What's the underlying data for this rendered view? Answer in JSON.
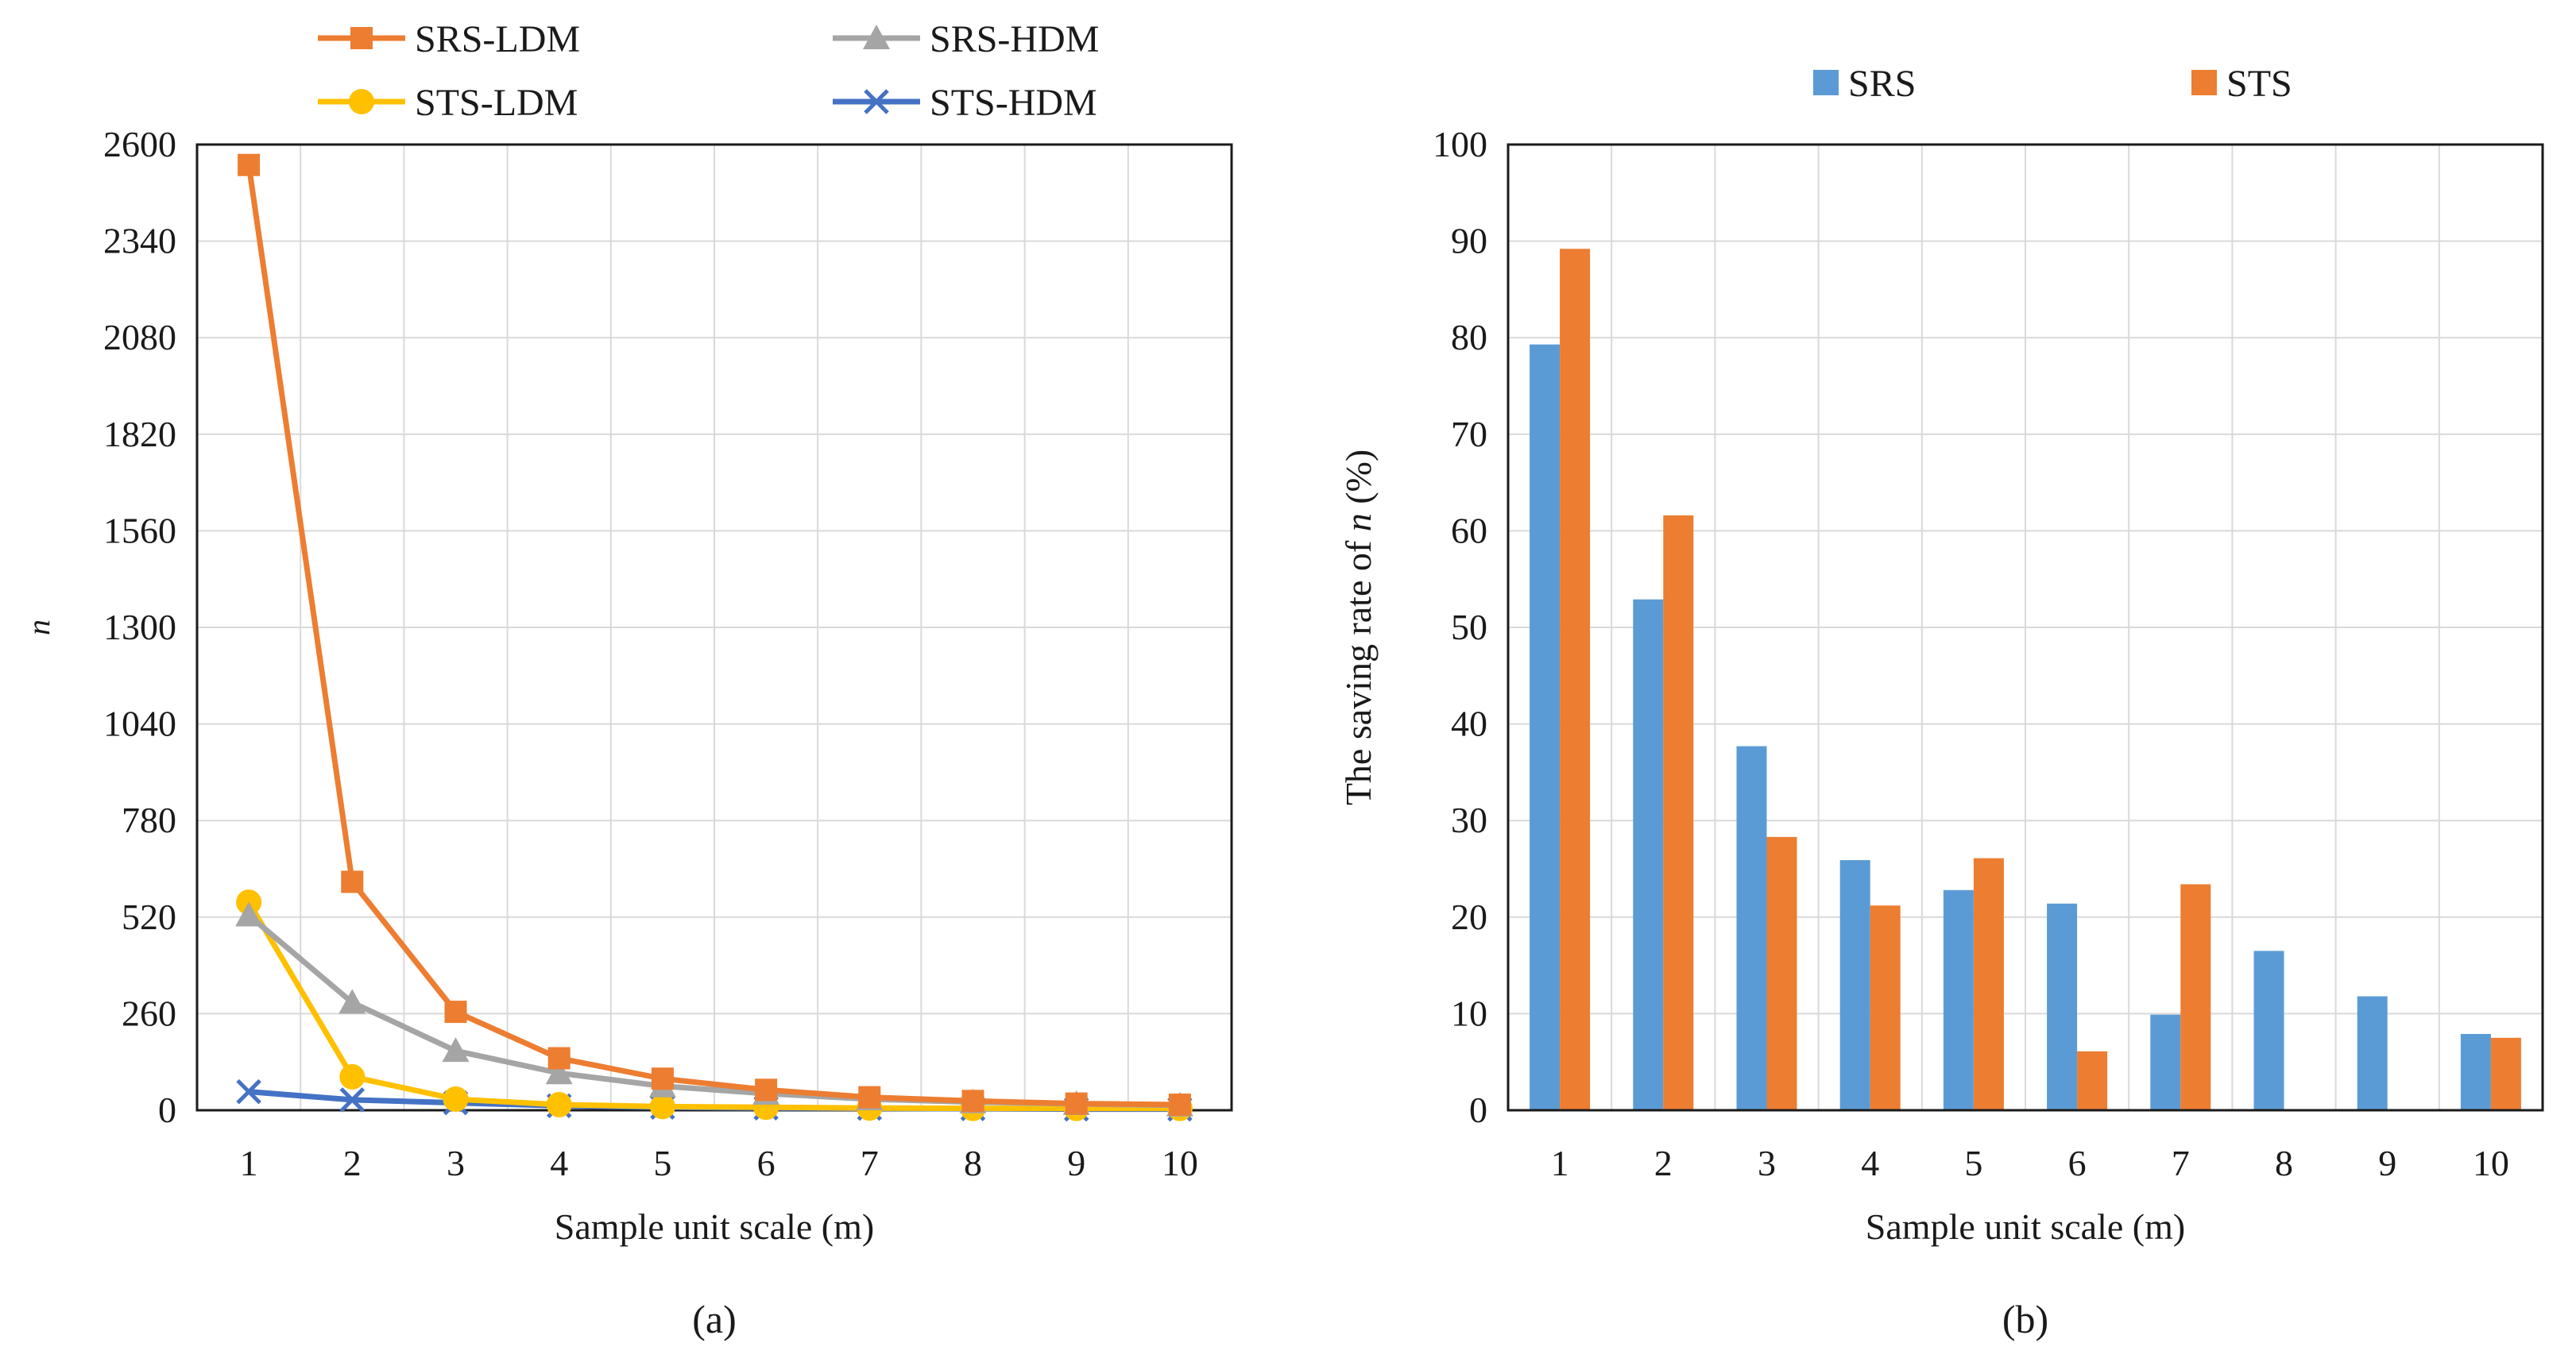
{
  "chart_data": [
    {
      "type": "line",
      "panel_label": "(a)",
      "title": "",
      "xlabel": "Sample unit scale (m)",
      "ylabel": "n",
      "x": [
        1,
        2,
        3,
        4,
        5,
        6,
        7,
        8,
        9,
        10
      ],
      "ylim": [
        0,
        2600
      ],
      "yticks": [
        0,
        260,
        520,
        780,
        1040,
        1300,
        1560,
        1820,
        2080,
        2340,
        2600
      ],
      "grid": true,
      "legend_position": "top",
      "series": [
        {
          "name": "SRS-LDM",
          "color": "#ED7D31",
          "marker": "square",
          "values": [
            2545,
            615,
            265,
            140,
            85,
            55,
            35,
            25,
            18,
            15
          ]
        },
        {
          "name": "SRS-HDM",
          "color": "#A5A5A5",
          "marker": "triangle",
          "values": [
            525,
            290,
            160,
            100,
            65,
            45,
            30,
            22,
            17,
            13
          ]
        },
        {
          "name": "STS-LDM",
          "color": "#FFC000",
          "marker": "circle",
          "values": [
            560,
            90,
            30,
            15,
            10,
            8,
            6,
            5,
            5,
            5
          ]
        },
        {
          "name": "STS-HDM",
          "color": "#4472C4",
          "marker": "x",
          "values": [
            50,
            28,
            20,
            12,
            8,
            6,
            5,
            4,
            3,
            3
          ]
        }
      ]
    },
    {
      "type": "bar",
      "panel_label": "(b)",
      "title": "",
      "xlabel": "Sample unit scale (m)",
      "ylabel_prefix": "The saving rate of ",
      "ylabel_var": "n",
      "ylabel_suffix": " (%)",
      "categories": [
        "1",
        "2",
        "3",
        "4",
        "5",
        "6",
        "7",
        "8",
        "9",
        "10"
      ],
      "ylim": [
        0,
        100
      ],
      "yticks": [
        0,
        10,
        20,
        30,
        40,
        50,
        60,
        70,
        80,
        90,
        100
      ],
      "grid": true,
      "legend_position": "top",
      "series": [
        {
          "name": "SRS",
          "color": "#5B9BD5",
          "values": [
            79.3,
            52.9,
            37.7,
            25.9,
            22.8,
            21.4,
            9.9,
            16.5,
            11.8,
            7.9
          ]
        },
        {
          "name": "STS",
          "color": "#ED7D31",
          "values": [
            89.2,
            61.6,
            28.3,
            21.2,
            26.1,
            6.1,
            23.4,
            0,
            0,
            7.5
          ]
        }
      ]
    }
  ]
}
